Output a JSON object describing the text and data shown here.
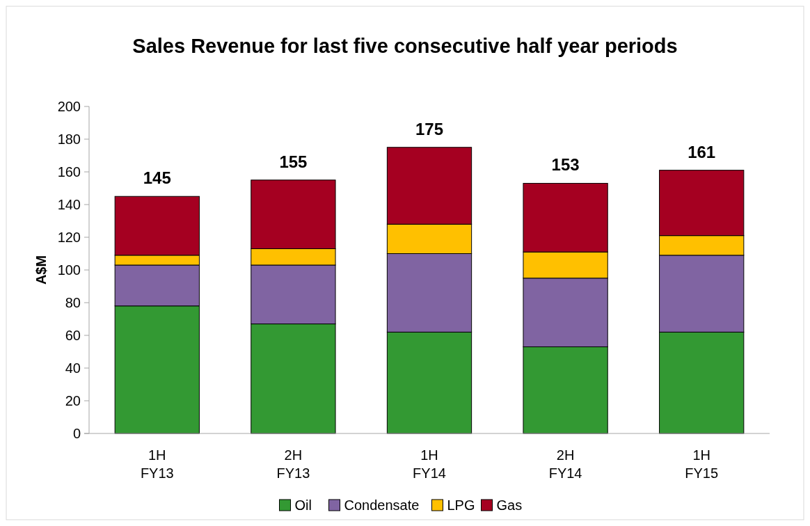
{
  "chart_data": {
    "type": "bar",
    "title": "Sales Revenue for last five consecutive half year periods",
    "ylabel": "A$M",
    "categories": [
      "1H\nFY13",
      "2H\nFY13",
      "1H\nFY14",
      "2H\nFY14",
      "1H\nFY15"
    ],
    "stacked": true,
    "series": [
      {
        "name": "Oil",
        "color": "#339933",
        "values": [
          78,
          67,
          62,
          53,
          62
        ]
      },
      {
        "name": "Condensate",
        "color": "#8064a2",
        "values": [
          25,
          36,
          48,
          42,
          47
        ]
      },
      {
        "name": "LPG",
        "color": "#ffc000",
        "values": [
          6,
          10,
          18,
          16,
          12
        ]
      },
      {
        "name": "Gas",
        "color": "#a50021",
        "values": [
          36,
          42,
          47,
          42,
          40
        ]
      }
    ],
    "totals": [
      "145",
      "155",
      "175",
      "153",
      "161"
    ],
    "ylim": [
      0,
      200
    ],
    "yticks": [
      0,
      20,
      40,
      60,
      80,
      100,
      120,
      140,
      160,
      180,
      200
    ],
    "grid": false,
    "legend": "bottom"
  }
}
